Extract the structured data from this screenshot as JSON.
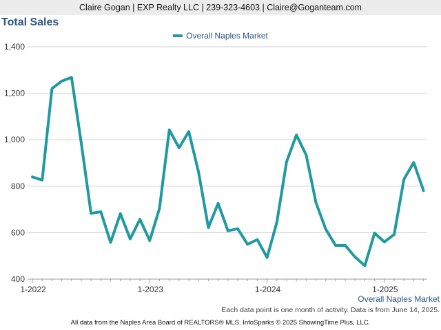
{
  "header": {
    "contact_line": "Claire Gogan | EXP Realty LLC | 239-323-4603 | Claire@Goganteam.com"
  },
  "chart_data": {
    "type": "line",
    "title": "Total Sales",
    "xlabel": "",
    "ylabel": "",
    "ylim": [
      400,
      1400
    ],
    "yticks": [
      "400",
      "600",
      "800",
      "1,000",
      "1,200",
      "1,400"
    ],
    "xtick_labels": [
      "1-2022",
      "1-2023",
      "1-2024",
      "1-2025"
    ],
    "grid": true,
    "legend_position": "top-center",
    "color": "#1f9aa0",
    "x": [
      "2022-01",
      "2022-02",
      "2022-03",
      "2022-04",
      "2022-05",
      "2022-06",
      "2022-07",
      "2022-08",
      "2022-09",
      "2022-10",
      "2022-11",
      "2022-12",
      "2023-01",
      "2023-02",
      "2023-03",
      "2023-04",
      "2023-05",
      "2023-06",
      "2023-07",
      "2023-08",
      "2023-09",
      "2023-10",
      "2023-11",
      "2023-12",
      "2024-01",
      "2024-02",
      "2024-03",
      "2024-04",
      "2024-05",
      "2024-06",
      "2024-07",
      "2024-08",
      "2024-09",
      "2024-10",
      "2024-11",
      "2024-12",
      "2025-01",
      "2025-02",
      "2025-03",
      "2025-04",
      "2025-05"
    ],
    "series": [
      {
        "name": "Overall Naples Market",
        "values": [
          840,
          826,
          1220,
          1252,
          1268,
          985,
          683,
          690,
          558,
          682,
          573,
          657,
          566,
          705,
          1042,
          965,
          1035,
          860,
          622,
          726,
          608,
          617,
          550,
          570,
          493,
          645,
          905,
          1020,
          935,
          730,
          615,
          545,
          545,
          495,
          458,
          598,
          560,
          592,
          830,
          902,
          781
        ]
      }
    ]
  },
  "series_caption": "Overall Naples Market",
  "note": "Each data point is one month of activity. Data is from June 14, 2025.",
  "footer": "All data from the Naples Area Board of REALTORS® MLS. InfoSparks © 2025 ShowingTime Plus, LLC."
}
